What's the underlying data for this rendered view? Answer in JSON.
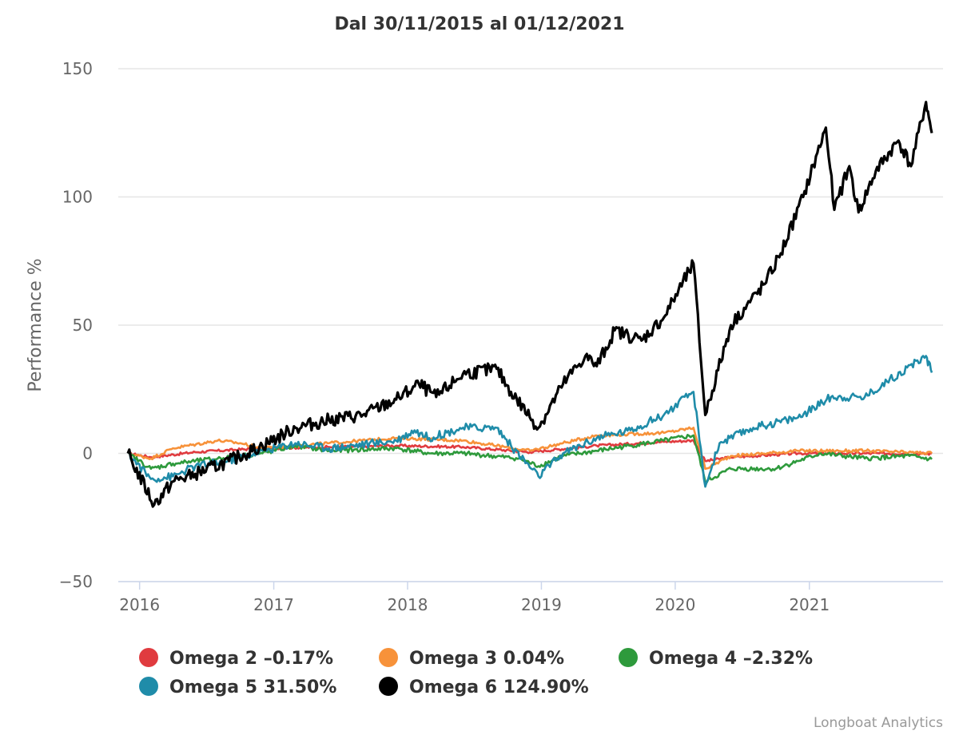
{
  "chart_data": {
    "type": "line",
    "title": "Dal 30/11/2015 al 01/12/2021",
    "ylabel": "Performance %",
    "xlabel": "",
    "xlim": [
      "2015-11-30",
      "2021-12-01"
    ],
    "ylim": [
      -50,
      150
    ],
    "yticks": [
      -50,
      0,
      50,
      100,
      150
    ],
    "xticks": [
      {
        "label": "2016",
        "date": "2016-01-01"
      },
      {
        "label": "2017",
        "date": "2017-01-01"
      },
      {
        "label": "2018",
        "date": "2018-01-01"
      },
      {
        "label": "2019",
        "date": "2019-01-01"
      },
      {
        "label": "2020",
        "date": "2020-01-01"
      },
      {
        "label": "2021",
        "date": "2021-01-01"
      }
    ],
    "grid": true,
    "legend_position": "bottom",
    "credit": "Longboat Analytics",
    "series": [
      {
        "name": "Omega 2 -0.17%",
        "color": "#e03b3f",
        "points": [
          [
            "2015-11-30",
            0
          ],
          [
            "2016-02-01",
            -1.5
          ],
          [
            "2016-06-01",
            0.5
          ],
          [
            "2016-12-01",
            2
          ],
          [
            "2017-06-01",
            2.5
          ],
          [
            "2017-12-01",
            3
          ],
          [
            "2018-06-01",
            2.5
          ],
          [
            "2018-12-01",
            0.5
          ],
          [
            "2019-06-01",
            3
          ],
          [
            "2019-12-01",
            4.5
          ],
          [
            "2020-02-20",
            5
          ],
          [
            "2020-03-23",
            -3
          ],
          [
            "2020-06-01",
            -1.5
          ],
          [
            "2020-12-01",
            0
          ],
          [
            "2021-06-01",
            0
          ],
          [
            "2021-12-01",
            -0.17
          ]
        ]
      },
      {
        "name": "Omega 3 0.04%",
        "color": "#f7923a",
        "points": [
          [
            "2015-11-30",
            0
          ],
          [
            "2016-02-01",
            -2
          ],
          [
            "2016-04-01",
            2
          ],
          [
            "2016-08-01",
            5
          ],
          [
            "2016-10-01",
            4
          ],
          [
            "2016-12-01",
            2
          ],
          [
            "2017-06-01",
            4
          ],
          [
            "2017-12-01",
            6
          ],
          [
            "2018-06-01",
            5
          ],
          [
            "2018-12-01",
            1
          ],
          [
            "2019-03-01",
            4
          ],
          [
            "2019-06-01",
            7
          ],
          [
            "2019-12-01",
            8
          ],
          [
            "2020-02-20",
            10
          ],
          [
            "2020-03-23",
            -6
          ],
          [
            "2020-06-01",
            -1
          ],
          [
            "2020-12-01",
            1
          ],
          [
            "2021-06-01",
            1
          ],
          [
            "2021-12-01",
            0.04
          ]
        ]
      },
      {
        "name": "Omega 4 -2.32%",
        "color": "#2e9a3c",
        "points": [
          [
            "2015-11-30",
            0
          ],
          [
            "2016-02-01",
            -6
          ],
          [
            "2016-04-01",
            -4
          ],
          [
            "2016-08-01",
            -2
          ],
          [
            "2016-12-01",
            0
          ],
          [
            "2017-03-01",
            3
          ],
          [
            "2017-06-01",
            1
          ],
          [
            "2017-12-01",
            2
          ],
          [
            "2018-03-01",
            0
          ],
          [
            "2018-06-01",
            0
          ],
          [
            "2018-11-01",
            -2
          ],
          [
            "2018-12-24",
            -5
          ],
          [
            "2019-03-01",
            -1
          ],
          [
            "2019-06-01",
            1
          ],
          [
            "2019-09-01",
            3
          ],
          [
            "2019-12-01",
            5
          ],
          [
            "2020-02-20",
            7
          ],
          [
            "2020-03-23",
            -11
          ],
          [
            "2020-06-01",
            -6
          ],
          [
            "2020-10-01",
            -6
          ],
          [
            "2020-12-01",
            -3
          ],
          [
            "2021-02-01",
            0
          ],
          [
            "2021-06-01",
            -2
          ],
          [
            "2021-10-01",
            -1
          ],
          [
            "2021-12-01",
            -2.32
          ]
        ]
      },
      {
        "name": "Omega 5 31.50%",
        "color": "#1f8ca9",
        "points": [
          [
            "2015-11-30",
            0
          ],
          [
            "2016-02-01",
            -10
          ],
          [
            "2016-04-01",
            -9
          ],
          [
            "2016-06-01",
            -5
          ],
          [
            "2016-09-01",
            -3
          ],
          [
            "2016-12-01",
            1
          ],
          [
            "2017-03-01",
            4
          ],
          [
            "2017-06-01",
            2
          ],
          [
            "2017-10-01",
            4
          ],
          [
            "2017-12-01",
            5
          ],
          [
            "2018-01-20",
            9
          ],
          [
            "2018-03-01",
            6
          ],
          [
            "2018-06-01",
            10
          ],
          [
            "2018-09-01",
            10
          ],
          [
            "2018-10-10",
            3
          ],
          [
            "2018-12-24",
            -9
          ],
          [
            "2019-03-01",
            0
          ],
          [
            "2019-06-01",
            6
          ],
          [
            "2019-09-01",
            9
          ],
          [
            "2019-12-01",
            15
          ],
          [
            "2020-02-20",
            24
          ],
          [
            "2020-03-23",
            -13
          ],
          [
            "2020-05-01",
            4
          ],
          [
            "2020-08-01",
            10
          ],
          [
            "2020-12-01",
            14
          ],
          [
            "2021-03-01",
            22
          ],
          [
            "2021-06-01",
            22
          ],
          [
            "2021-08-01",
            28
          ],
          [
            "2021-11-15",
            38
          ],
          [
            "2021-12-01",
            31.5
          ]
        ]
      },
      {
        "name": "Omega 6 124.90%",
        "color": "#000000",
        "points": [
          [
            "2015-11-30",
            0
          ],
          [
            "2016-02-10",
            -20
          ],
          [
            "2016-04-01",
            -11
          ],
          [
            "2016-06-01",
            -8
          ],
          [
            "2016-09-01",
            -3
          ],
          [
            "2016-12-01",
            3
          ],
          [
            "2017-03-01",
            10
          ],
          [
            "2017-06-01",
            13
          ],
          [
            "2017-09-01",
            15
          ],
          [
            "2017-12-01",
            21
          ],
          [
            "2018-02-01",
            27
          ],
          [
            "2018-03-20",
            22
          ],
          [
            "2018-06-01",
            31
          ],
          [
            "2018-09-01",
            33
          ],
          [
            "2018-10-10",
            24
          ],
          [
            "2018-12-24",
            10
          ],
          [
            "2019-03-01",
            27
          ],
          [
            "2019-05-01",
            38
          ],
          [
            "2019-06-01",
            34
          ],
          [
            "2019-07-20",
            48
          ],
          [
            "2019-10-01",
            44
          ],
          [
            "2019-12-01",
            53
          ],
          [
            "2020-02-20",
            74
          ],
          [
            "2020-03-23",
            15
          ],
          [
            "2020-06-01",
            50
          ],
          [
            "2020-09-01",
            66
          ],
          [
            "2020-10-15",
            78
          ],
          [
            "2020-12-15",
            100
          ],
          [
            "2021-02-15",
            127
          ],
          [
            "2021-03-10",
            95
          ],
          [
            "2021-04-20",
            112
          ],
          [
            "2021-05-15",
            94
          ],
          [
            "2021-07-01",
            110
          ],
          [
            "2021-09-01",
            122
          ],
          [
            "2021-10-05",
            112
          ],
          [
            "2021-11-15",
            137
          ],
          [
            "2021-12-01",
            124.9
          ]
        ]
      }
    ]
  }
}
